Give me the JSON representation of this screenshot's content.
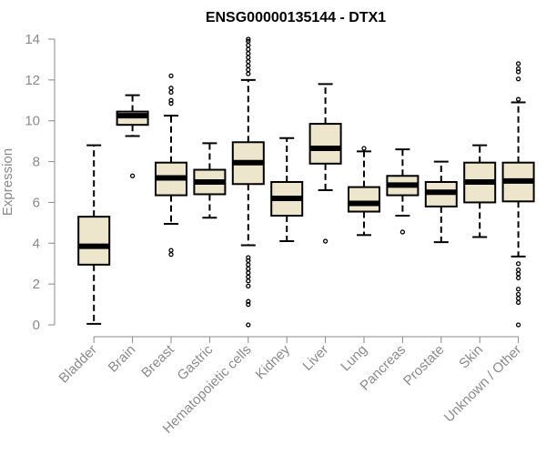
{
  "chart_data": {
    "type": "box",
    "title": "ENSG00000135144 - DTX1",
    "xlabel": "",
    "ylabel": "Expression",
    "ylim": [
      0,
      14
    ],
    "yticks": [
      0,
      2,
      4,
      6,
      8,
      10,
      12,
      14
    ],
    "grid": false,
    "colors": {
      "box_fill": "#ede6cc",
      "stroke": "#000000",
      "axis_text": "#8a8a8a"
    },
    "categories": [
      "Bladder",
      "Brain",
      "Breast",
      "Gastric",
      "Hematopoietic cells",
      "Kidney",
      "Liver",
      "Lung",
      "Pancreas",
      "Prostate",
      "Skin",
      "Unknown / Other"
    ],
    "boxes": [
      {
        "category": "Bladder",
        "whisker_low": 0.05,
        "q1": 2.95,
        "median": 3.85,
        "q3": 5.3,
        "whisker_high": 8.8,
        "outliers": []
      },
      {
        "category": "Brain",
        "whisker_low": 9.25,
        "q1": 9.8,
        "median": 10.25,
        "q3": 10.45,
        "whisker_high": 11.25,
        "outliers": [
          7.3
        ]
      },
      {
        "category": "Breast",
        "whisker_low": 4.95,
        "q1": 6.35,
        "median": 7.2,
        "q3": 7.95,
        "whisker_high": 10.25,
        "outliers": [
          3.45,
          3.65,
          10.85,
          11.0,
          11.4,
          11.6,
          12.2
        ]
      },
      {
        "category": "Gastric",
        "whisker_low": 5.25,
        "q1": 6.4,
        "median": 7.0,
        "q3": 7.6,
        "whisker_high": 8.9,
        "outliers": []
      },
      {
        "category": "Hematopoietic cells",
        "whisker_low": 3.9,
        "q1": 6.9,
        "median": 7.95,
        "q3": 8.95,
        "whisker_high": 12.0,
        "outliers": [
          0.0,
          1.0,
          1.15,
          1.9,
          2.15,
          2.35,
          2.55,
          2.75,
          2.95,
          3.15,
          3.3,
          12.3,
          12.5,
          12.7,
          12.9,
          13.1,
          13.3,
          13.5,
          13.7,
          13.9,
          14.0
        ]
      },
      {
        "category": "Kidney",
        "whisker_low": 4.1,
        "q1": 5.35,
        "median": 6.2,
        "q3": 7.0,
        "whisker_high": 9.15,
        "outliers": []
      },
      {
        "category": "Liver",
        "whisker_low": 6.6,
        "q1": 7.9,
        "median": 8.65,
        "q3": 9.85,
        "whisker_high": 11.8,
        "outliers": [
          4.1
        ]
      },
      {
        "category": "Lung",
        "whisker_low": 4.4,
        "q1": 5.55,
        "median": 5.95,
        "q3": 6.75,
        "whisker_high": 8.5,
        "outliers": [
          8.65
        ]
      },
      {
        "category": "Pancreas",
        "whisker_low": 5.35,
        "q1": 6.35,
        "median": 6.85,
        "q3": 7.3,
        "whisker_high": 8.6,
        "outliers": [
          4.55
        ]
      },
      {
        "category": "Prostate",
        "whisker_low": 4.05,
        "q1": 5.8,
        "median": 6.5,
        "q3": 7.0,
        "whisker_high": 8.0,
        "outliers": []
      },
      {
        "category": "Skin",
        "whisker_low": 4.3,
        "q1": 6.0,
        "median": 7.0,
        "q3": 7.95,
        "whisker_high": 8.8,
        "outliers": []
      },
      {
        "category": "Unknown / Other",
        "whisker_low": 3.35,
        "q1": 6.05,
        "median": 7.05,
        "q3": 7.95,
        "whisker_high": 10.9,
        "outliers": [
          0.0,
          1.1,
          1.3,
          1.5,
          1.75,
          2.3,
          2.5,
          2.7,
          3.0,
          11.05,
          12.05,
          12.4,
          12.55,
          12.8
        ]
      }
    ]
  }
}
